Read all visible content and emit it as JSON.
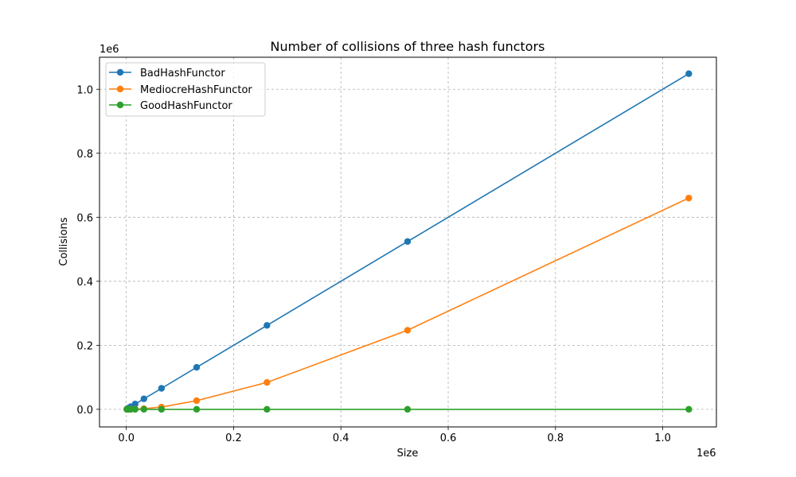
{
  "chart_data": {
    "type": "line",
    "title": "Number of collisions of three hash functors",
    "xlabel": "Size",
    "ylabel": "Collisions",
    "x_offset_label": "1e6",
    "y_offset_label": "1e6",
    "xlim": [
      -50000,
      1100000
    ],
    "ylim": [
      -55000,
      1100000
    ],
    "xticks": [
      0,
      200000,
      400000,
      600000,
      800000,
      1000000
    ],
    "xtick_labels": [
      "0.0",
      "0.2",
      "0.4",
      "0.6",
      "0.8",
      "1.0"
    ],
    "yticks": [
      0,
      200000,
      400000,
      600000,
      800000,
      1000000
    ],
    "ytick_labels": [
      "0.0",
      "0.2",
      "0.4",
      "0.6",
      "0.8",
      "1.0"
    ],
    "grid": true,
    "legend_position": "upper-left",
    "x": [
      1024,
      2048,
      4096,
      8192,
      16384,
      32768,
      65536,
      131072,
      262144,
      524288,
      1048576
    ],
    "series": [
      {
        "name": "BadHashFunctor",
        "color": "#1f77b4",
        "values": [
          1023,
          2047,
          4095,
          8191,
          16383,
          32767,
          65535,
          131071,
          262143,
          524287,
          1048575
        ]
      },
      {
        "name": "MediocreHashFunctor",
        "color": "#ff7f0e",
        "values": [
          0,
          0,
          0,
          0,
          500,
          2000,
          7000,
          27000,
          84000,
          247000,
          660000
        ]
      },
      {
        "name": "GoodHashFunctor",
        "color": "#2ca02c",
        "values": [
          0,
          0,
          0,
          0,
          0,
          0,
          0,
          0,
          0,
          0,
          0
        ]
      }
    ]
  }
}
